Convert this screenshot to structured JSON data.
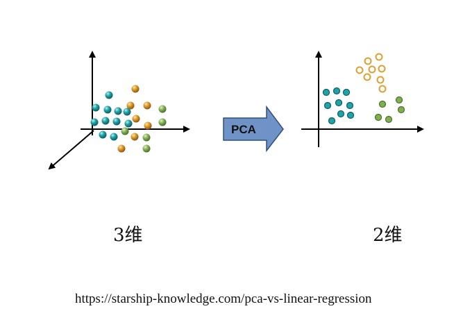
{
  "arrow_label": "PCA",
  "label_3d": "3维",
  "label_2d": "2维",
  "source_url": "https://starship-knowledge.com/pca-vs-linear-regression",
  "colors": {
    "teal": "#1fa3a8",
    "orange": "#e0a030",
    "green": "#7fb050",
    "arrow_fill": "#6f93c7",
    "arrow_stroke": "#2f4f7f"
  }
}
